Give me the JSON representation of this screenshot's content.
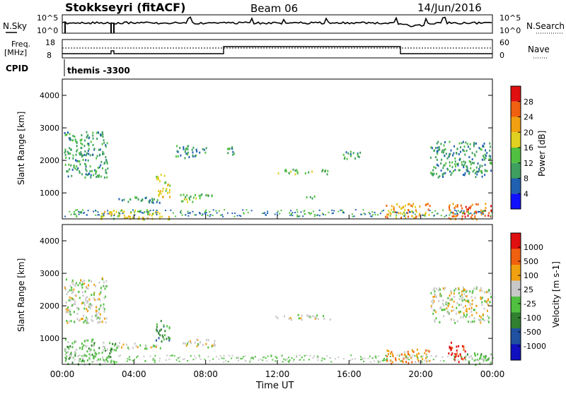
{
  "header": {
    "title": "Stokkseyri (fitACF)",
    "beam": "Beam 06",
    "date": "14/Jun/2016"
  },
  "top_panels": {
    "nsky_label": "N.Sky",
    "nsky_ticks": [
      "10^5",
      "10^0"
    ],
    "nsearch_label": "N.Search",
    "nsearch_ticks": [
      "10^5",
      "10^0"
    ],
    "freq_label": "Freq.",
    "freq_unit": "[MHz]",
    "freq_ticks": [
      "18",
      "8"
    ],
    "nave_label": "Nave",
    "nave_ticks": [
      "60",
      "0"
    ],
    "cpid_label": "CPID",
    "cpid_value": "themis -3300"
  },
  "colors": {
    "power_scale": [
      "#1010ff",
      "#2060b0",
      "#3f9f5f",
      "#50c040",
      "#e0d020",
      "#f0a010",
      "#f06010",
      "#e01010"
    ],
    "velocity_scale": [
      "#1010c0",
      "#2050a0",
      "#308030",
      "#50c040",
      "#c8c8c8",
      "#f0a010",
      "#f06010",
      "#e01010"
    ]
  },
  "chart_data": [
    {
      "type": "heatmap",
      "name": "power",
      "ylabel": "Slant Range [km]",
      "yticks": [
        "4000",
        "3000",
        "2000",
        "1000"
      ],
      "ylim": [
        200,
        4500
      ],
      "xticks": [
        "00:00",
        "04:00",
        "08:00",
        "12:00",
        "16:00",
        "20:00",
        "00:00"
      ],
      "xlim": [
        0,
        24
      ],
      "colorbar_label": "Power [dB]",
      "colorbar_ticks": [
        "28",
        "24",
        "20",
        "16",
        "12",
        "8",
        "4"
      ],
      "colorbar_range": [
        0,
        30
      ],
      "regions": [
        {
          "t0": 0.1,
          "t1": 2.5,
          "r0": 1500,
          "r1": 2900,
          "level": 2
        },
        {
          "t0": 2.0,
          "t1": 6.0,
          "r0": 200,
          "r1": 500,
          "level": 4
        },
        {
          "t0": 3.0,
          "t1": 5.5,
          "r0": 700,
          "r1": 900,
          "level": 2
        },
        {
          "t0": 5.2,
          "t1": 6.0,
          "r0": 900,
          "r1": 1600,
          "level": 4
        },
        {
          "t0": 6.5,
          "t1": 8.5,
          "r0": 750,
          "r1": 1000,
          "level": 3
        },
        {
          "t0": 6.3,
          "t1": 8.0,
          "r0": 2100,
          "r1": 2500,
          "level": 2
        },
        {
          "t0": 9.0,
          "t1": 9.6,
          "r0": 2200,
          "r1": 2500,
          "level": 2
        },
        {
          "t0": 11.8,
          "t1": 15.0,
          "r0": 1600,
          "r1": 1750,
          "level": 3
        },
        {
          "t0": 13.5,
          "t1": 14.3,
          "r0": 850,
          "r1": 950,
          "level": 2
        },
        {
          "t0": 15.5,
          "t1": 16.6,
          "r0": 2000,
          "r1": 2300,
          "level": 2
        },
        {
          "t0": 18.0,
          "t1": 20.5,
          "r0": 250,
          "r1": 700,
          "level": 5
        },
        {
          "t0": 20.5,
          "t1": 23.9,
          "r0": 1500,
          "r1": 2600,
          "level": 2
        },
        {
          "t0": 21.5,
          "t1": 23.9,
          "r0": 200,
          "r1": 700,
          "level": 6
        }
      ]
    },
    {
      "type": "heatmap",
      "name": "velocity",
      "xlabel": "Time UT",
      "ylabel": "Slant Range [km]",
      "yticks": [
        "4000",
        "3000",
        "2000",
        "1000"
      ],
      "ylim": [
        200,
        4500
      ],
      "xticks": [
        "00:00",
        "04:00",
        "08:00",
        "12:00",
        "16:00",
        "20:00",
        "00:00"
      ],
      "xlim": [
        0,
        24
      ],
      "colorbar_label": "Velocity [m s-1]",
      "colorbar_ticks": [
        "1000",
        "500",
        "100",
        "25",
        "-25",
        "-100",
        "-500",
        "-1000"
      ],
      "colorbar_range": [
        -1200,
        1200
      ],
      "regions": [
        {
          "t0": 0.1,
          "t1": 2.5,
          "r0": 1500,
          "r1": 2900,
          "level": 4
        },
        {
          "t0": 0.1,
          "t1": 3.0,
          "r0": 200,
          "r1": 1000,
          "level": 3
        },
        {
          "t0": 3.0,
          "t1": 5.5,
          "r0": 700,
          "r1": 900,
          "level": 4
        },
        {
          "t0": 5.2,
          "t1": 6.0,
          "r0": 900,
          "r1": 1600,
          "level": 2
        },
        {
          "t0": 6.5,
          "t1": 8.5,
          "r0": 750,
          "r1": 1000,
          "level": 4
        },
        {
          "t0": 11.8,
          "t1": 15.0,
          "r0": 1600,
          "r1": 1750,
          "level": 4
        },
        {
          "t0": 18.0,
          "t1": 20.5,
          "r0": 250,
          "r1": 700,
          "level": 5
        },
        {
          "t0": 20.5,
          "t1": 23.9,
          "r0": 1500,
          "r1": 2600,
          "level": 4
        },
        {
          "t0": 21.5,
          "t1": 22.5,
          "r0": 300,
          "r1": 900,
          "level": 7
        },
        {
          "t0": 22.5,
          "t1": 23.9,
          "r0": 200,
          "r1": 600,
          "level": 3
        }
      ]
    }
  ]
}
